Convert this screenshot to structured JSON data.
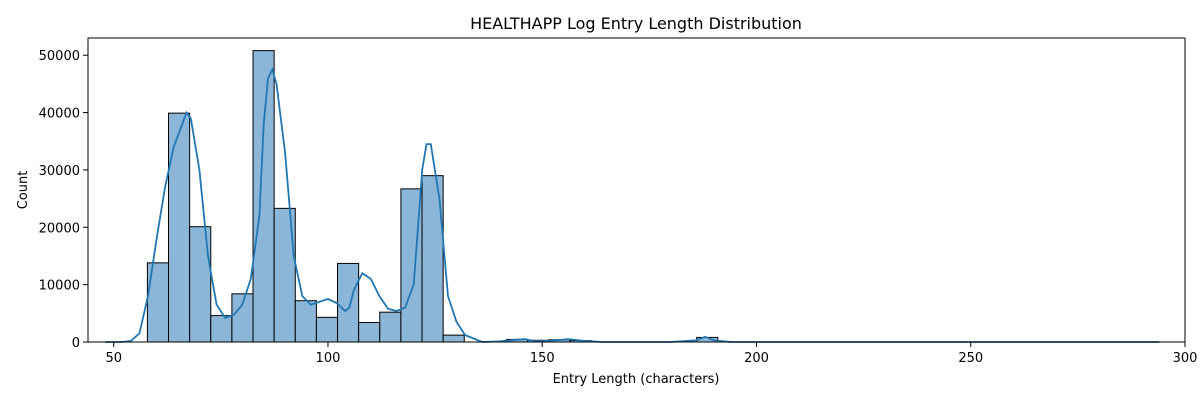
{
  "chart_data": {
    "type": "bar",
    "title": "HEALTHAPP Log Entry Length Distribution",
    "xlabel": "Entry Length (characters)",
    "ylabel": "Count",
    "xlim": [
      44,
      300
    ],
    "ylim": [
      0,
      53000
    ],
    "xticks": [
      50,
      100,
      150,
      200,
      250,
      300
    ],
    "yticks": [
      0,
      10000,
      20000,
      30000,
      40000,
      50000
    ],
    "grid": false,
    "colors": {
      "bar_fill": "#8cb6d8",
      "bar_edge": "#000000",
      "kde_line": "#1f77b4"
    },
    "bin_width": 4.93,
    "bins": [
      {
        "x0": 48.0,
        "count": 0
      },
      {
        "x0": 52.93,
        "count": 0
      },
      {
        "x0": 57.86,
        "count": 13800
      },
      {
        "x0": 62.79,
        "count": 39900
      },
      {
        "x0": 67.72,
        "count": 20100
      },
      {
        "x0": 72.65,
        "count": 4600
      },
      {
        "x0": 77.58,
        "count": 8400
      },
      {
        "x0": 82.51,
        "count": 50800
      },
      {
        "x0": 87.44,
        "count": 23300
      },
      {
        "x0": 92.37,
        "count": 7200
      },
      {
        "x0": 97.3,
        "count": 4300
      },
      {
        "x0": 102.23,
        "count": 13700
      },
      {
        "x0": 107.16,
        "count": 3400
      },
      {
        "x0": 112.09,
        "count": 5200
      },
      {
        "x0": 117.02,
        "count": 26700
      },
      {
        "x0": 121.95,
        "count": 29000
      },
      {
        "x0": 126.88,
        "count": 1200
      },
      {
        "x0": 131.81,
        "count": 0
      },
      {
        "x0": 136.74,
        "count": 0
      },
      {
        "x0": 141.67,
        "count": 450
      },
      {
        "x0": 146.6,
        "count": 300
      },
      {
        "x0": 151.53,
        "count": 400
      },
      {
        "x0": 156.46,
        "count": 250
      },
      {
        "x0": 161.39,
        "count": 0
      },
      {
        "x0": 186.04,
        "count": 800
      },
      {
        "x0": 190.97,
        "count": 0
      }
    ],
    "kde": {
      "x": [
        48,
        52,
        54,
        56,
        58,
        60,
        62,
        64,
        66,
        67,
        68,
        70,
        72,
        74,
        76,
        78,
        80,
        82,
        84,
        85,
        86,
        87,
        88,
        90,
        92,
        94,
        96,
        98,
        100,
        102,
        104,
        105,
        106,
        108,
        110,
        112,
        114,
        116,
        118,
        120,
        121,
        122,
        123,
        124,
        126,
        128,
        130,
        132,
        136,
        140,
        144,
        146,
        148,
        150,
        154,
        156,
        160,
        164,
        170,
        180,
        186,
        188,
        190,
        194,
        200,
        220,
        250,
        294
      ],
      "y": [
        0,
        0,
        200,
        1500,
        8000,
        18000,
        27000,
        34000,
        38000,
        40000,
        39000,
        30000,
        15000,
        6500,
        4200,
        4700,
        6500,
        11000,
        22000,
        38000,
        46000,
        47500,
        45000,
        33000,
        15000,
        8000,
        6500,
        7000,
        7500,
        6800,
        5400,
        6000,
        9000,
        12000,
        11000,
        8000,
        5800,
        5400,
        6000,
        10000,
        20000,
        30000,
        34500,
        34500,
        25000,
        8000,
        3500,
        1200,
        0,
        100,
        400,
        500,
        200,
        150,
        350,
        500,
        200,
        0,
        0,
        0,
        300,
        900,
        300,
        0,
        0,
        0,
        0,
        0
      ]
    }
  }
}
